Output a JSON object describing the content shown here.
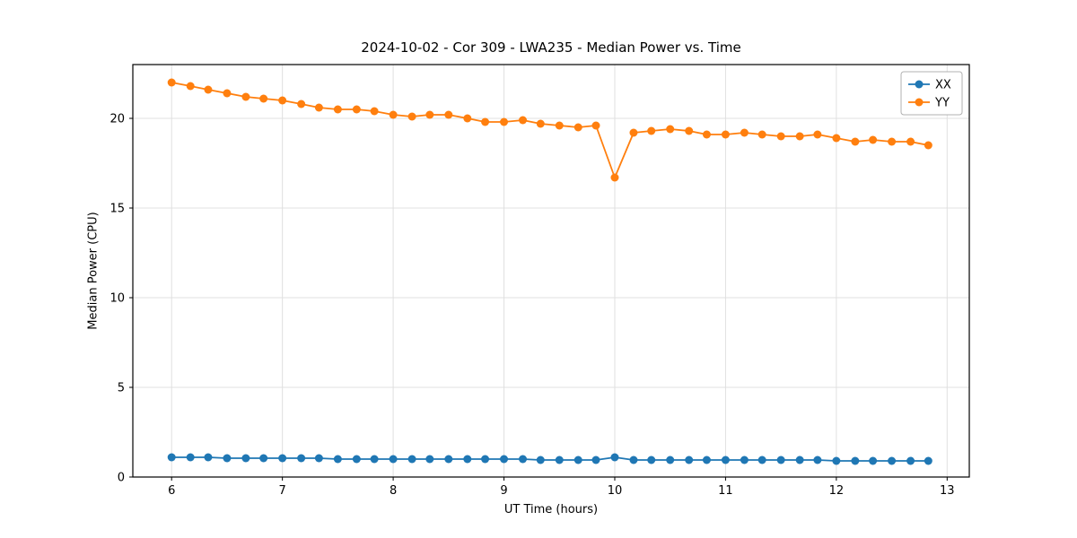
{
  "chart_data": {
    "type": "line",
    "title": "2024-10-02 - Cor 309 - LWA235 - Median Power vs. Time",
    "xlabel": "UT Time (hours)",
    "ylabel": "Median Power (CPU)",
    "xlim": [
      5.65,
      13.2
    ],
    "ylim": [
      0,
      23
    ],
    "xticks": [
      6,
      7,
      8,
      9,
      10,
      11,
      12,
      13
    ],
    "yticks": [
      0,
      5,
      10,
      15,
      20
    ],
    "grid": true,
    "legend_position": "upper right",
    "x": [
      6.0,
      6.17,
      6.33,
      6.5,
      6.67,
      6.83,
      7.0,
      7.17,
      7.33,
      7.5,
      7.67,
      7.83,
      8.0,
      8.17,
      8.33,
      8.5,
      8.67,
      8.83,
      9.0,
      9.17,
      9.33,
      9.5,
      9.67,
      9.83,
      10.0,
      10.17,
      10.33,
      10.5,
      10.67,
      10.83,
      11.0,
      11.17,
      11.33,
      11.5,
      11.67,
      11.83,
      12.0,
      12.17,
      12.33,
      12.5,
      12.67,
      12.83
    ],
    "series": [
      {
        "name": "XX",
        "color": "#1f77b4",
        "values": [
          1.1,
          1.1,
          1.1,
          1.05,
          1.05,
          1.05,
          1.05,
          1.05,
          1.05,
          1.0,
          1.0,
          1.0,
          1.0,
          1.0,
          1.0,
          1.0,
          1.0,
          1.0,
          1.0,
          1.0,
          0.95,
          0.95,
          0.95,
          0.95,
          1.1,
          0.95,
          0.95,
          0.95,
          0.95,
          0.95,
          0.95,
          0.95,
          0.95,
          0.95,
          0.95,
          0.95,
          0.9,
          0.9,
          0.9,
          0.9,
          0.9,
          0.9
        ]
      },
      {
        "name": "YY",
        "color": "#ff7f0e",
        "values": [
          22.0,
          21.8,
          21.6,
          21.4,
          21.2,
          21.1,
          21.0,
          20.8,
          20.6,
          20.5,
          20.5,
          20.4,
          20.2,
          20.1,
          20.2,
          20.2,
          20.0,
          19.8,
          19.8,
          19.9,
          19.7,
          19.6,
          19.5,
          19.6,
          16.7,
          19.2,
          19.3,
          19.4,
          19.3,
          19.1,
          19.1,
          19.2,
          19.1,
          19.0,
          19.0,
          19.1,
          18.9,
          18.7,
          18.8,
          18.7,
          18.7,
          18.5
        ]
      }
    ],
    "style": {
      "grid_color": "#e0e0e0",
      "spine_color": "#000000",
      "legend_border_color": "#b0b0b0",
      "marker_radius": 4.5,
      "line_width": 1.8
    }
  }
}
